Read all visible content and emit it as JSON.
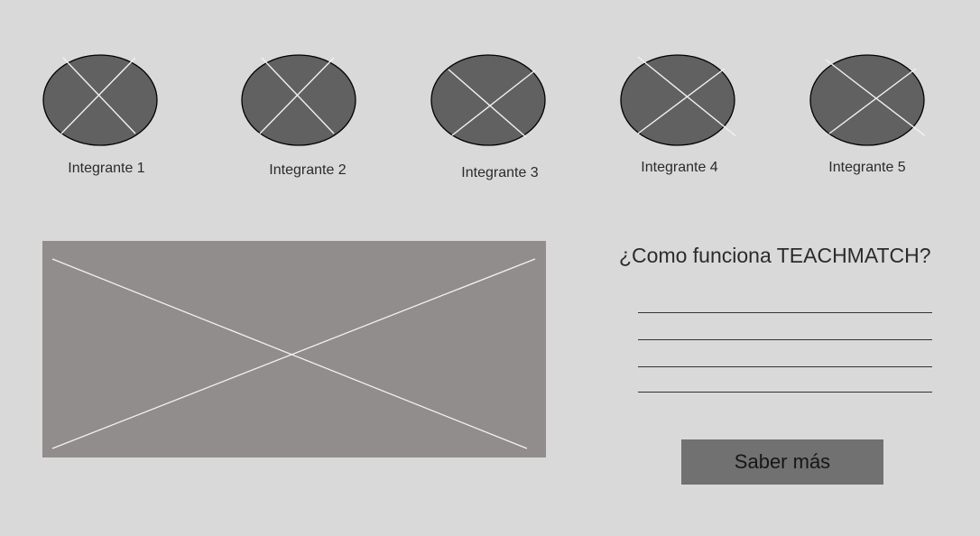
{
  "team": {
    "members": [
      {
        "name": "Integrante 1"
      },
      {
        "name": "Integrante 2"
      },
      {
        "name": "Integrante 3"
      },
      {
        "name": "Integrante 4"
      },
      {
        "name": "Integrante 5"
      }
    ]
  },
  "info": {
    "question": "¿Como funciona TEACHMATCH?",
    "button_label": "Saber más"
  },
  "colors": {
    "background": "#d9d9d9",
    "avatar_fill": "#616161",
    "image_placeholder": "#918d8c",
    "button": "#717171"
  }
}
